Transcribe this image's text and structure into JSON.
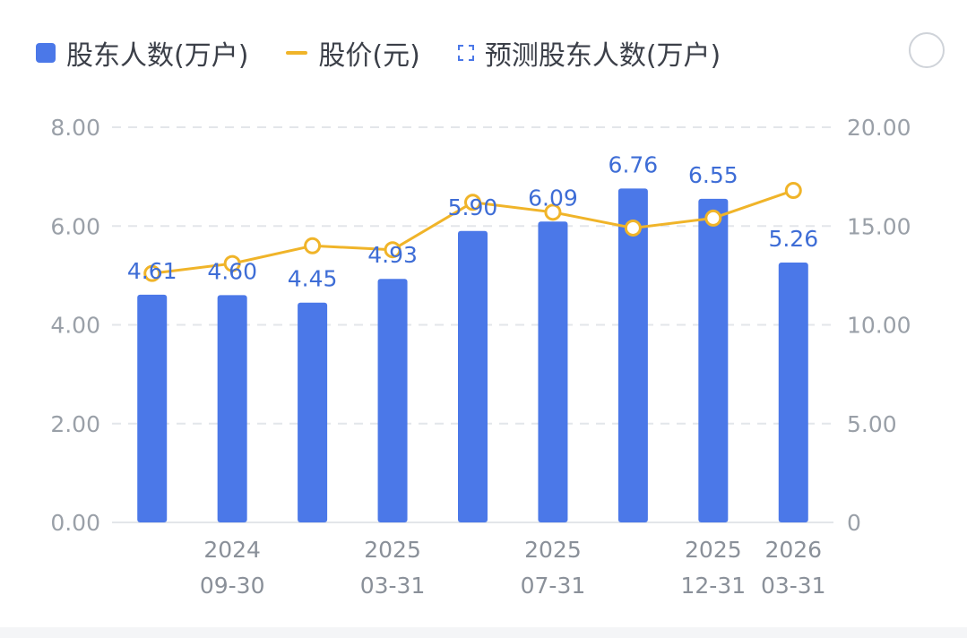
{
  "legend": {
    "series1": "股东人数(万户)",
    "series2": "股价(元)",
    "series3": "预测股东人数(万户)"
  },
  "colors": {
    "bar": "#4b78e8",
    "line": "#f0b429",
    "grid": "#e3e6ea"
  },
  "chart_data": {
    "type": "bar",
    "categories": [
      "",
      "2024\n09-30",
      "",
      "2025\n03-31",
      "",
      "2025\n07-31",
      "",
      "2025\n12-31",
      "2026\n03-31"
    ],
    "series": [
      {
        "name": "股东人数(万户)",
        "type": "bar",
        "axis": "left",
        "values": [
          4.61,
          4.6,
          4.45,
          4.93,
          5.9,
          6.09,
          6.76,
          6.55,
          5.26
        ]
      },
      {
        "name": "股价(元)",
        "type": "line",
        "axis": "right",
        "values": [
          12.6,
          13.1,
          14.0,
          13.8,
          16.2,
          15.7,
          14.9,
          15.4,
          16.8
        ]
      }
    ],
    "data_labels": [
      "4.61",
      "4.60",
      "4.45",
      "4.93",
      "5.90",
      "6.09",
      "6.76",
      "6.55",
      "5.26"
    ],
    "y_left": {
      "range": [
        0,
        8
      ],
      "ticks": [
        "0.00",
        "2.00",
        "4.00",
        "6.00",
        "8.00"
      ]
    },
    "y_right": {
      "range": [
        0,
        20
      ],
      "ticks": [
        "0",
        "5.00",
        "10.00",
        "15.00",
        "20.00"
      ]
    },
    "grid": true,
    "legend_position": "top"
  }
}
